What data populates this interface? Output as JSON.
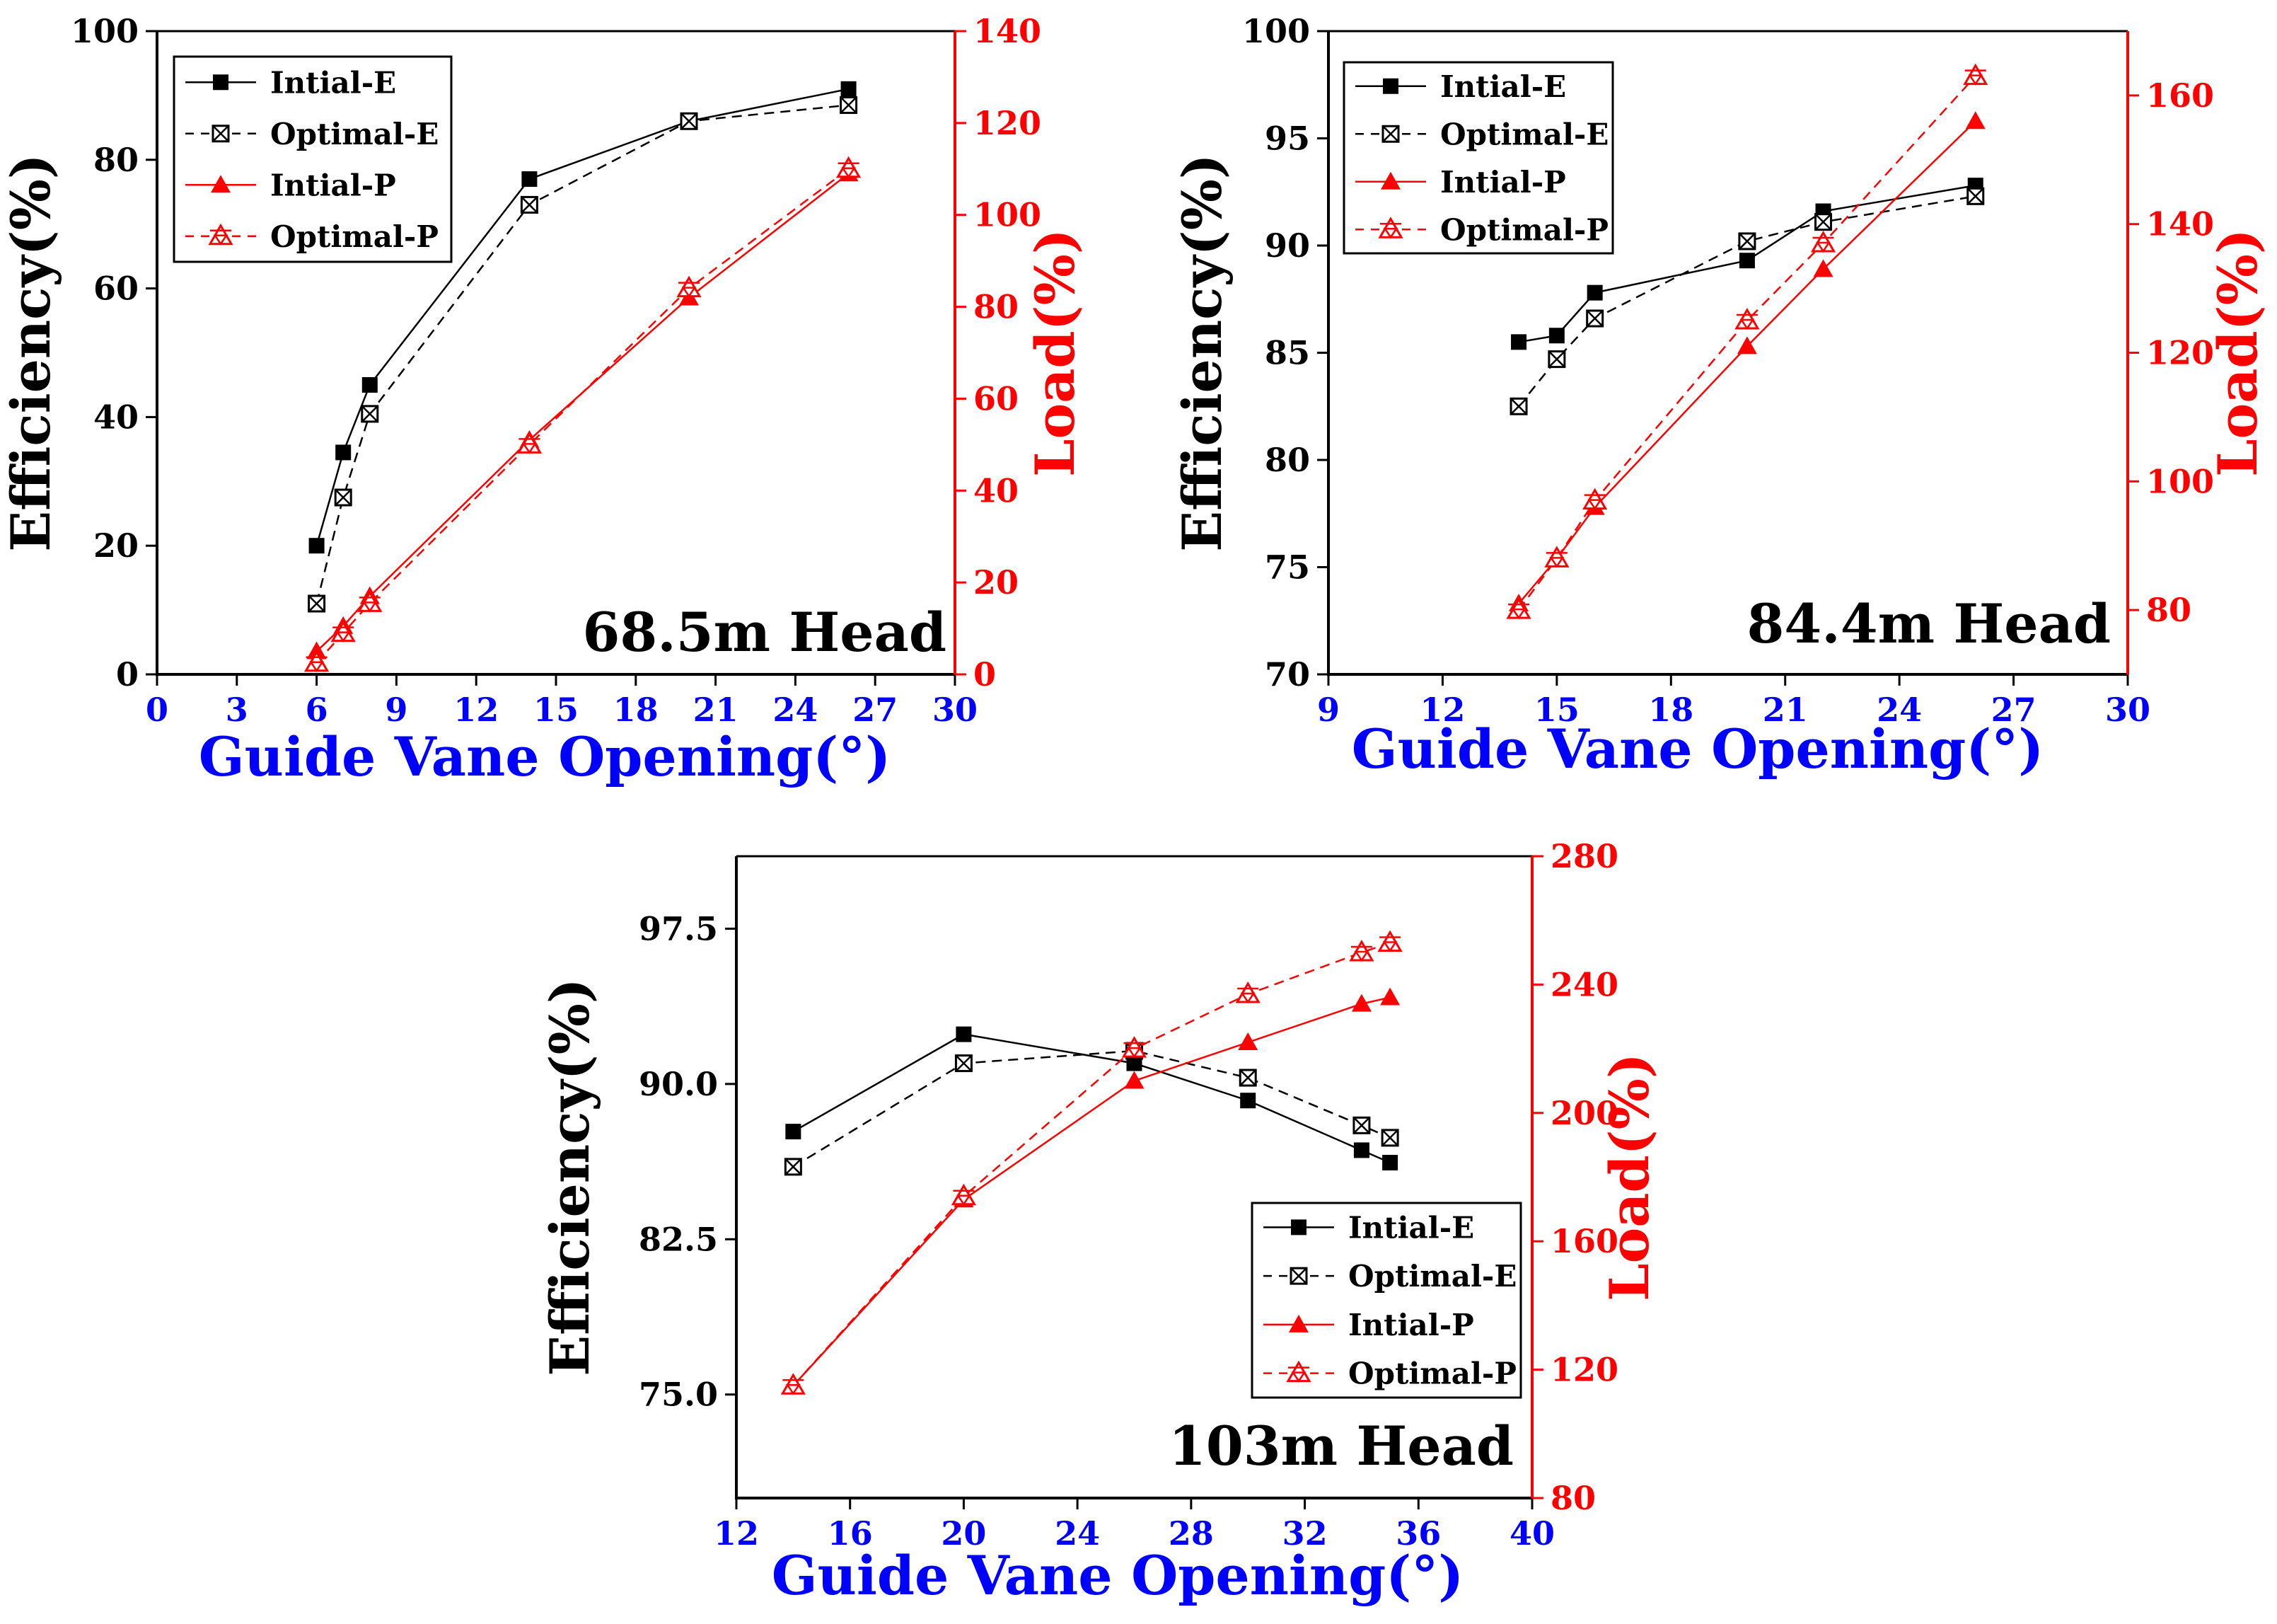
{
  "colors": {
    "efficiency": "#000000",
    "load": "#ff0000",
    "xlabel": "#0000ff",
    "xticks": "#0000ff",
    "frame": "#000000"
  },
  "chart_data": [
    {
      "type": "line",
      "annotation": "68.5m Head",
      "xlabel": "Guide Vane Opening(°)",
      "ylabel": "Efficiency(%)",
      "y2label": "Load(%)",
      "xlim": [
        0,
        30
      ],
      "xticks": [
        0,
        3,
        6,
        9,
        12,
        15,
        18,
        21,
        24,
        27,
        30
      ],
      "xtick_labels": [
        "0",
        "3",
        "6",
        "9",
        "12",
        "15",
        "18",
        "21",
        "24",
        "27",
        "30"
      ],
      "ylim": [
        0,
        100
      ],
      "yticks": [
        0,
        20,
        40,
        60,
        80,
        100
      ],
      "ytick_labels": [
        "0",
        "20",
        "40",
        "60",
        "80",
        "100"
      ],
      "y2lim": [
        0,
        140
      ],
      "y2ticks": [
        0,
        20,
        40,
        60,
        80,
        100,
        120,
        140
      ],
      "y2tick_labels": [
        "0",
        "20",
        "40",
        "60",
        "80",
        "100",
        "120",
        "140"
      ],
      "legend_position": "top-left",
      "series": [
        {
          "name": "Intial-E",
          "axis": "left",
          "x": [
            6,
            7,
            8,
            14,
            20,
            26
          ],
          "values": [
            20,
            34.5,
            45,
            77,
            86,
            91
          ]
        },
        {
          "name": "Optimal-E",
          "axis": "left",
          "x": [
            6,
            7,
            8,
            14,
            20,
            26
          ],
          "values": [
            11,
            27.5,
            40.5,
            73,
            86,
            88.5
          ]
        },
        {
          "name": "Intial-P",
          "axis": "right",
          "x": [
            6,
            7,
            8,
            14,
            20,
            26
          ],
          "values": [
            5,
            10.5,
            17,
            51,
            82,
            109
          ]
        },
        {
          "name": "Optimal-P",
          "axis": "right",
          "x": [
            6,
            7,
            8,
            14,
            20,
            26
          ],
          "values": [
            2.5,
            9,
            15.5,
            50,
            84,
            110
          ]
        }
      ]
    },
    {
      "type": "line",
      "annotation": "84.4m Head",
      "xlabel": "Guide Vane Opening(°)",
      "ylabel": "Efficiency(%)",
      "y2label": "Load(%)",
      "xlim": [
        9,
        30
      ],
      "xticks": [
        9,
        12,
        15,
        18,
        21,
        24,
        27,
        30
      ],
      "xtick_labels": [
        "9",
        "12",
        "15",
        "18",
        "21",
        "24",
        "27",
        "30"
      ],
      "ylim": [
        70,
        100
      ],
      "yticks": [
        70,
        75,
        80,
        85,
        90,
        95,
        100
      ],
      "ytick_labels": [
        "70",
        "75",
        "80",
        "85",
        "90",
        "95",
        "100"
      ],
      "y2lim": [
        70,
        170
      ],
      "y2ticks": [
        80,
        100,
        120,
        140,
        160
      ],
      "y2tick_labels": [
        "80",
        "100",
        "120",
        "140",
        "160"
      ],
      "legend_position": "top-left",
      "series": [
        {
          "name": "Intial-E",
          "axis": "left",
          "x": [
            14,
            15,
            16,
            20,
            22,
            26
          ],
          "values": [
            85.5,
            85.8,
            87.8,
            89.3,
            91.6,
            92.8
          ]
        },
        {
          "name": "Optimal-E",
          "axis": "left",
          "x": [
            14,
            15,
            16,
            20,
            22,
            26
          ],
          "values": [
            82.5,
            84.7,
            86.6,
            90.2,
            91.1,
            92.3
          ]
        },
        {
          "name": "Intial-P",
          "axis": "right",
          "x": [
            14,
            15,
            16,
            20,
            22,
            26
          ],
          "values": [
            81,
            88,
            96,
            121,
            133,
            156
          ]
        },
        {
          "name": "Optimal-P",
          "axis": "right",
          "x": [
            14,
            15,
            16,
            20,
            22,
            26
          ],
          "values": [
            80,
            88,
            97,
            125,
            137,
            163
          ]
        }
      ]
    },
    {
      "type": "line",
      "annotation": "103m Head",
      "xlabel": "Guide Vane Opening(°)",
      "ylabel": "Efficiency(%)",
      "y2label": "Load(%)",
      "xlim": [
        12,
        40
      ],
      "xticks": [
        12,
        16,
        20,
        24,
        28,
        32,
        36,
        40
      ],
      "xtick_labels": [
        "12",
        "16",
        "20",
        "24",
        "28",
        "32",
        "36",
        "40"
      ],
      "ylim": [
        70,
        101
      ],
      "yticks": [
        75,
        82.5,
        90,
        97.5
      ],
      "ytick_labels": [
        "75.0",
        "82.5",
        "90.0",
        "97.5"
      ],
      "y2lim": [
        80,
        280
      ],
      "y2ticks": [
        80,
        120,
        160,
        200,
        240,
        280
      ],
      "y2tick_labels": [
        "80",
        "120",
        "160",
        "200",
        "240",
        "280"
      ],
      "legend_position": "bottom-right",
      "series": [
        {
          "name": "Intial-E",
          "axis": "left",
          "x": [
            14,
            20,
            26,
            30,
            34,
            35
          ],
          "values": [
            87.7,
            92.4,
            91.0,
            89.2,
            86.8,
            86.2
          ]
        },
        {
          "name": "Optimal-E",
          "axis": "left",
          "x": [
            14,
            20,
            26,
            30,
            34,
            35
          ],
          "values": [
            86.0,
            91.0,
            91.6,
            90.3,
            88.0,
            87.4
          ]
        },
        {
          "name": "Intial-P",
          "axis": "right",
          "x": [
            14,
            20,
            26,
            30,
            34,
            35
          ],
          "values": [
            115,
            173,
            210,
            222,
            234,
            236
          ]
        },
        {
          "name": "Optimal-P",
          "axis": "right",
          "x": [
            14,
            20,
            26,
            30,
            34,
            35
          ],
          "values": [
            115,
            174,
            220,
            237,
            250,
            253
          ]
        }
      ]
    }
  ]
}
